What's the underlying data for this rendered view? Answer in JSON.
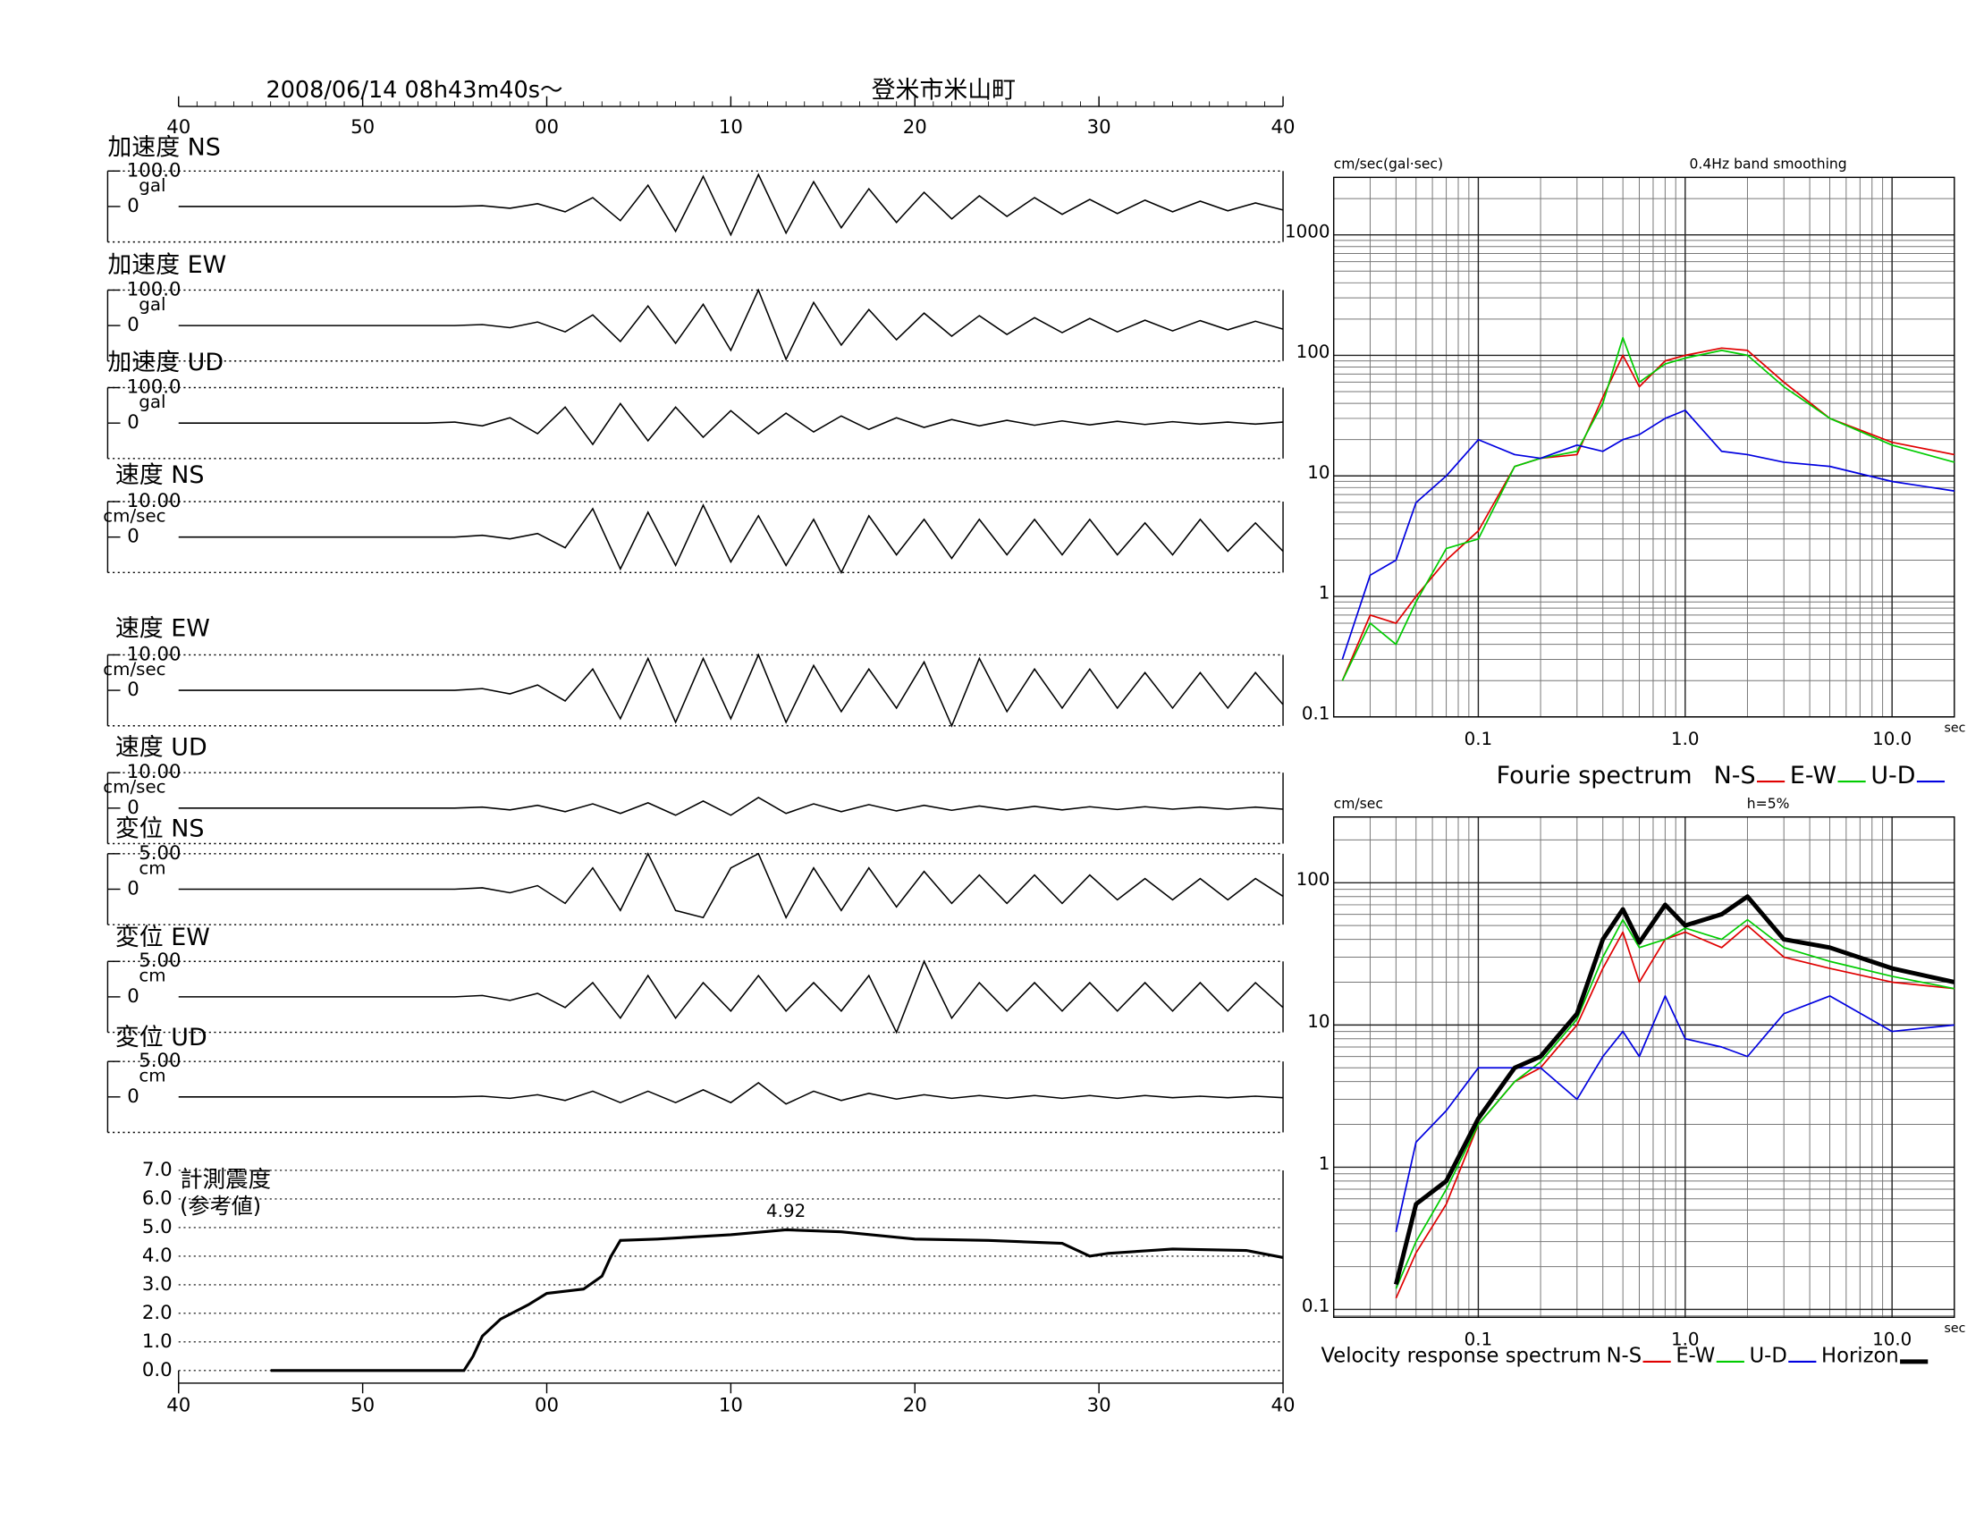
{
  "chart_data": [
    {
      "type": "waveform",
      "title": "2008/06/14  08h43m40s～",
      "subtitle": "登米市米山町",
      "xlim": [
        0,
        60
      ],
      "xticks": [
        {
          "value": 0,
          "label": "40"
        },
        {
          "value": 10,
          "label": "50"
        },
        {
          "value": 20,
          "label": "00"
        },
        {
          "value": 30,
          "label": "10"
        },
        {
          "value": 40,
          "label": "20"
        },
        {
          "value": 50,
          "label": "30"
        },
        {
          "value": 60,
          "label": "40"
        }
      ],
      "x": [
        0,
        1.5,
        3,
        4.5,
        6,
        7.5,
        9,
        10.5,
        12,
        13.5,
        15,
        16.5,
        18,
        19.5,
        21,
        22.5,
        24,
        25.5,
        27,
        28.5,
        30,
        31.5,
        33,
        34.5,
        36,
        37.5,
        39,
        40.5,
        42,
        43.5,
        45,
        46.5,
        48,
        49.5,
        51,
        52.5,
        54,
        55.5,
        57,
        58.5,
        60
      ],
      "series": [
        {
          "name": "加速度 NS",
          "unit": "gal",
          "ylim": [
            -100,
            100
          ],
          "yticks": [
            {
              "value": 100,
              "label": "100.0"
            },
            0
          ],
          "values": [
            0,
            0,
            0,
            0,
            0,
            0,
            0,
            0,
            0,
            0,
            0,
            2,
            -5,
            8,
            -15,
            25,
            -40,
            60,
            -70,
            85,
            -80,
            90,
            -75,
            70,
            -60,
            50,
            -45,
            40,
            -35,
            30,
            -28,
            25,
            -22,
            20,
            -20,
            18,
            -15,
            15,
            -12,
            10,
            -10
          ]
        },
        {
          "name": "加速度 EW",
          "unit": "gal",
          "ylim": [
            -100,
            100
          ],
          "yticks": [
            {
              "value": 100,
              "label": "100.0"
            },
            0
          ],
          "values": [
            0,
            0,
            0,
            0,
            0,
            0,
            0,
            0,
            0,
            0,
            0,
            3,
            -6,
            10,
            -18,
            30,
            -45,
            55,
            -50,
            60,
            -70,
            100,
            -95,
            65,
            -55,
            45,
            -40,
            35,
            -30,
            28,
            -25,
            22,
            -20,
            20,
            -18,
            15,
            -15,
            14,
            -12,
            12,
            -10
          ]
        },
        {
          "name": "加速度 UD",
          "unit": "gal",
          "ylim": [
            -100,
            100
          ],
          "yticks": [
            {
              "value": 100,
              "label": "100.0"
            },
            0
          ],
          "values": [
            0,
            0,
            0,
            0,
            0,
            0,
            0,
            0,
            0,
            0,
            3,
            -8,
            15,
            -30,
            45,
            -60,
            55,
            -50,
            45,
            -40,
            35,
            -30,
            28,
            -25,
            20,
            -18,
            15,
            -12,
            10,
            -8,
            8,
            -6,
            6,
            -5,
            5,
            -4,
            4,
            -3,
            3,
            -3,
            3
          ]
        },
        {
          "name": "速度 NS",
          "unit": "cm/sec",
          "ylim": [
            -10,
            10
          ],
          "yticks": [
            {
              "value": 10,
              "label": "10.00"
            },
            0
          ],
          "values": [
            0,
            0,
            0,
            0,
            0,
            0,
            0,
            0,
            0,
            0,
            0,
            0.5,
            -0.5,
            1,
            -3,
            8,
            -9,
            7,
            -8,
            9,
            -7,
            6,
            -8,
            5,
            -10,
            6,
            -5,
            5,
            -6,
            5,
            -5,
            5,
            -5,
            5,
            -5,
            4,
            -5,
            5,
            -4,
            4,
            -4
          ]
        },
        {
          "name": "速度 EW",
          "unit": "cm/sec",
          "ylim": [
            -10,
            10
          ],
          "yticks": [
            {
              "value": 10,
              "label": "10.00"
            },
            0
          ],
          "values": [
            0,
            0,
            0,
            0,
            0,
            0,
            0,
            0,
            0,
            0,
            0,
            0.5,
            -1,
            1.5,
            -3,
            6,
            -8,
            9,
            -9,
            9,
            -8,
            10,
            -9,
            7,
            -6,
            6,
            -5,
            8,
            -10,
            9,
            -6,
            6,
            -5,
            6,
            -5,
            5,
            -5,
            5,
            -5,
            5,
            -4
          ]
        },
        {
          "name": "速度 UD",
          "unit": "cm/sec",
          "ylim": [
            -10,
            10
          ],
          "yticks": [
            {
              "value": 10,
              "label": "10.00"
            },
            0
          ],
          "values": [
            0,
            0,
            0,
            0,
            0,
            0,
            0,
            0,
            0,
            0,
            0,
            0.3,
            -0.5,
            0.8,
            -1,
            1.2,
            -1.5,
            1.5,
            -2,
            2,
            -2,
            3,
            -1.5,
            1.2,
            -1,
            1,
            -0.8,
            0.8,
            -0.6,
            0.6,
            -0.5,
            0.5,
            -0.5,
            0.4,
            -0.4,
            0.4,
            -0.3,
            0.3,
            -0.3,
            0.3,
            -0.3
          ]
        },
        {
          "name": "変位 NS",
          "unit": "cm",
          "ylim": [
            -5,
            5
          ],
          "yticks": [
            {
              "value": 5,
              "label": "5.00"
            },
            0
          ],
          "values": [
            0,
            0,
            0,
            0,
            0,
            0,
            0,
            0,
            0,
            0,
            0,
            0.2,
            -0.5,
            0.5,
            -2,
            3,
            -3,
            5,
            -3,
            -4,
            3,
            5,
            -4,
            3,
            -3,
            3,
            -2.5,
            2.5,
            -2,
            2,
            -2,
            2,
            -2,
            2,
            -1.5,
            1.5,
            -1.5,
            1.5,
            -1.5,
            1.5,
            -1
          ]
        },
        {
          "name": "変位 EW",
          "unit": "cm",
          "ylim": [
            -5,
            5
          ],
          "yticks": [
            {
              "value": 5,
              "label": "5.00"
            },
            0
          ],
          "values": [
            0,
            0,
            0,
            0,
            0,
            0,
            0,
            0,
            0,
            0,
            0,
            0.2,
            -0.5,
            0.5,
            -1.5,
            2,
            -3,
            3,
            -3,
            2,
            -2,
            3,
            -2,
            2,
            -2,
            3,
            -5,
            5,
            -3,
            2,
            -2,
            2,
            -2,
            2,
            -2,
            2,
            -2,
            2,
            -2,
            2,
            -1.5
          ]
        },
        {
          "name": "変位 UD",
          "unit": "cm",
          "ylim": [
            -5,
            5
          ],
          "yticks": [
            {
              "value": 5,
              "label": "5.00"
            },
            0
          ],
          "values": [
            0,
            0,
            0,
            0,
            0,
            0,
            0,
            0,
            0,
            0,
            0,
            0.1,
            -0.2,
            0.3,
            -0.5,
            0.8,
            -0.8,
            0.8,
            -0.8,
            1,
            -0.8,
            2,
            -1,
            0.8,
            -0.5,
            0.5,
            -0.3,
            0.3,
            -0.2,
            0.2,
            -0.2,
            0.2,
            -0.2,
            0.2,
            -0.2,
            0.2,
            -0.1,
            0.1,
            -0.1,
            0.1,
            -0.1
          ]
        }
      ]
    },
    {
      "type": "line",
      "title": "計測震度",
      "subtitle": "(参考値)",
      "color": "#000000",
      "xlim": [
        0,
        60
      ],
      "xticks": [
        {
          "value": 0,
          "label": "40"
        },
        {
          "value": 10,
          "label": "50"
        },
        {
          "value": 20,
          "label": "00"
        },
        {
          "value": 30,
          "label": "10"
        },
        {
          "value": 40,
          "label": "20"
        },
        {
          "value": 50,
          "label": "30"
        },
        {
          "value": 60,
          "label": "40"
        }
      ],
      "ylim": [
        0,
        7
      ],
      "yticks": [
        {
          "value": 0,
          "label": "0.0"
        },
        {
          "value": 1,
          "label": "1.0"
        },
        {
          "value": 2,
          "label": "2.0"
        },
        {
          "value": 3,
          "label": "3.0"
        },
        {
          "value": 4,
          "label": "4.0"
        },
        {
          "value": 5,
          "label": "5.0"
        },
        {
          "value": 6,
          "label": "6.0"
        },
        {
          "value": 7,
          "label": "7.0"
        }
      ],
      "x": [
        5,
        15.5,
        16,
        16.5,
        17.5,
        19,
        20,
        22,
        23,
        23.5,
        24,
        26,
        30,
        33,
        36,
        40,
        44,
        48,
        49.5,
        50.5,
        54,
        58,
        60
      ],
      "values": [
        0,
        0,
        0.5,
        1.2,
        1.8,
        2.3,
        2.7,
        2.85,
        3.3,
        4.0,
        4.55,
        4.6,
        4.75,
        4.92,
        4.85,
        4.6,
        4.55,
        4.45,
        4.0,
        4.1,
        4.25,
        4.2,
        3.95
      ],
      "value_labels": [
        null,
        null,
        null,
        null,
        null,
        null,
        null,
        null,
        null,
        null,
        null,
        null,
        null,
        "4.92",
        null,
        null,
        null,
        null,
        null,
        null,
        null,
        null,
        null
      ]
    },
    {
      "type": "loglog",
      "title": "Fourie spectrum",
      "ylabel": "cm/sec(gal·sec)",
      "note": "0.4Hz band smoothing",
      "xlabel": "sec",
      "log_x": true,
      "log_y": true,
      "grid": true,
      "legend": "bottom",
      "xlim": [
        0.02,
        20
      ],
      "xticks": [
        0.1,
        {
          "value": 1,
          "label": "1.0"
        },
        {
          "value": 10,
          "label": "10.0"
        }
      ],
      "ylim": [
        0.1,
        3000
      ],
      "yticks": [
        0.1,
        1,
        10,
        100,
        1000
      ],
      "x": [
        0.022,
        0.03,
        0.04,
        0.05,
        0.07,
        0.1,
        0.15,
        0.2,
        0.3,
        0.4,
        0.5,
        0.6,
        0.8,
        1.0,
        1.5,
        2,
        3,
        5,
        10,
        20
      ],
      "series": [
        {
          "name": "N-S",
          "color": "#e00000",
          "values": [
            0.2,
            0.7,
            0.6,
            1.0,
            2.0,
            3.5,
            12,
            14,
            15,
            45,
            100,
            55,
            90,
            100,
            115,
            110,
            60,
            30,
            19,
            15
          ]
        },
        {
          "name": "E-W",
          "color": "#00cc00",
          "values": [
            0.2,
            0.6,
            0.4,
            0.9,
            2.5,
            3,
            12,
            14,
            16,
            40,
            140,
            60,
            85,
            95,
            110,
            100,
            55,
            30,
            18,
            13
          ]
        },
        {
          "name": "U-D",
          "color": "#0000e0",
          "values": [
            0.3,
            1.5,
            2,
            6,
            10,
            20,
            15,
            14,
            18,
            16,
            20,
            22,
            30,
            35,
            16,
            15,
            13,
            12,
            9,
            7.5
          ]
        }
      ]
    },
    {
      "type": "loglog",
      "title": "Velocity response spectrum",
      "ylabel": "cm/sec",
      "note": "h=5%",
      "xlabel": "sec",
      "log_x": true,
      "log_y": true,
      "grid": true,
      "legend": "bottom",
      "xlim": [
        0.02,
        20
      ],
      "xticks": [
        0.1,
        {
          "value": 1,
          "label": "1.0"
        },
        {
          "value": 10,
          "label": "10.0"
        }
      ],
      "ylim": [
        0.088,
        290
      ],
      "yticks": [
        0.1,
        1,
        10,
        100
      ],
      "x": [
        0.04,
        0.05,
        0.07,
        0.1,
        0.15,
        0.2,
        0.3,
        0.4,
        0.5,
        0.6,
        0.8,
        1.0,
        1.5,
        2,
        3,
        5,
        10,
        20
      ],
      "series": [
        {
          "name": "N-S",
          "color": "#e00000",
          "values": [
            0.12,
            0.25,
            0.55,
            2,
            4,
            5,
            10,
            25,
            45,
            20,
            40,
            45,
            35,
            50,
            30,
            25,
            20,
            18
          ]
        },
        {
          "name": "E-W",
          "color": "#00cc00",
          "values": [
            0.14,
            0.3,
            0.7,
            2,
            4,
            5.5,
            11,
            30,
            55,
            35,
            40,
            48,
            40,
            55,
            35,
            28,
            22,
            18
          ]
        },
        {
          "name": "U-D",
          "color": "#0000e0",
          "values": [
            0.35,
            1.5,
            2.5,
            5,
            5,
            5,
            3,
            6,
            9,
            6,
            16,
            8,
            7,
            6,
            12,
            16,
            9,
            10
          ]
        },
        {
          "name": "Horizon",
          "color": "#000000",
          "line_width": 3.5,
          "values": [
            0.15,
            0.55,
            0.8,
            2.2,
            5,
            6,
            12,
            40,
            65,
            38,
            70,
            50,
            60,
            80,
            40,
            35,
            25,
            20
          ]
        }
      ]
    }
  ]
}
